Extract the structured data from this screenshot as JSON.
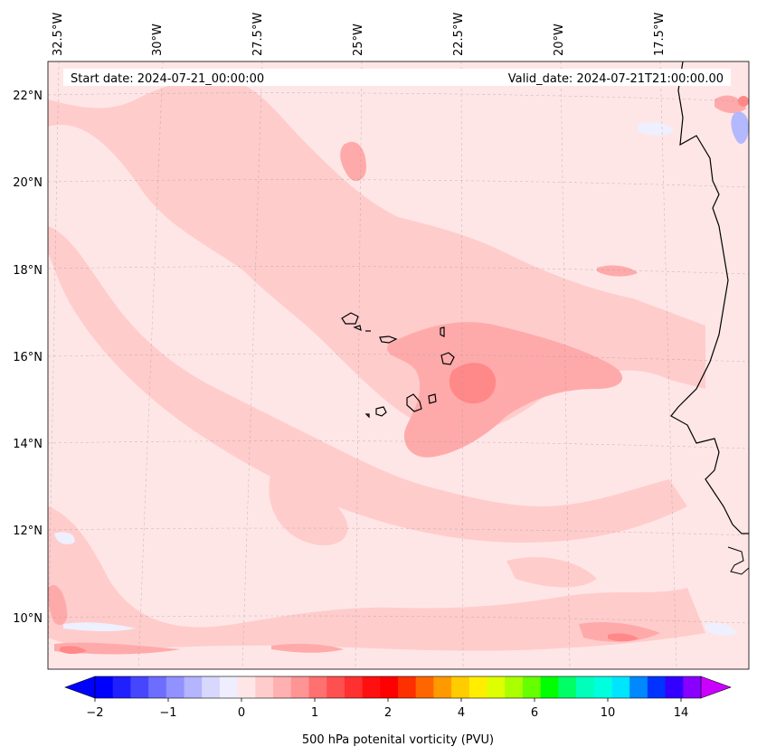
{
  "header": {
    "start_date": "Start date: 2024-07-21_00:00:00",
    "valid_date": "Valid_date: 2024-07-21T21:00:00.00"
  },
  "map": {
    "lon_labels": [
      "32.5°W",
      "30°W",
      "27.5°W",
      "25°W",
      "22.5°W",
      "20°W",
      "17.5°W"
    ],
    "lat_labels": [
      "22°N",
      "20°N",
      "18°N",
      "16°N",
      "14°N",
      "12°N",
      "10°N"
    ],
    "background_color": "#ffe6e6",
    "feature_colors": {
      "light": "#ffcccc",
      "mid": "#ffaaaa",
      "strong": "#ff8888",
      "negative": "#eef0ff",
      "negative_strong": "#b3b8ff"
    }
  },
  "colorbar": {
    "label": "500 hPa potenital vorticity (PVU)",
    "tick_labels": [
      "−2",
      "−1",
      "0",
      "1",
      "2",
      "4",
      "6",
      "10",
      "14"
    ],
    "colors": [
      "#0000ff",
      "#2020ff",
      "#4646ff",
      "#6d6dff",
      "#9191ff",
      "#b4b4ff",
      "#d8d8ff",
      "#eeeeff",
      "#ffe6e6",
      "#ffcccc",
      "#ffb0b0",
      "#ff9494",
      "#ff7070",
      "#ff5050",
      "#ff3030",
      "#ff1010",
      "#ff0000",
      "#ff3000",
      "#ff6600",
      "#ff9900",
      "#ffcc00",
      "#ffee00",
      "#ddff00",
      "#aaff00",
      "#66ff00",
      "#00ff00",
      "#00ff66",
      "#00ffbb",
      "#00ffdd",
      "#00e5ff",
      "#0088ff",
      "#0033ff",
      "#3300ff",
      "#8800ff"
    ],
    "extend_low_color": "#0000ff",
    "extend_high_color": "#cc00ff"
  }
}
